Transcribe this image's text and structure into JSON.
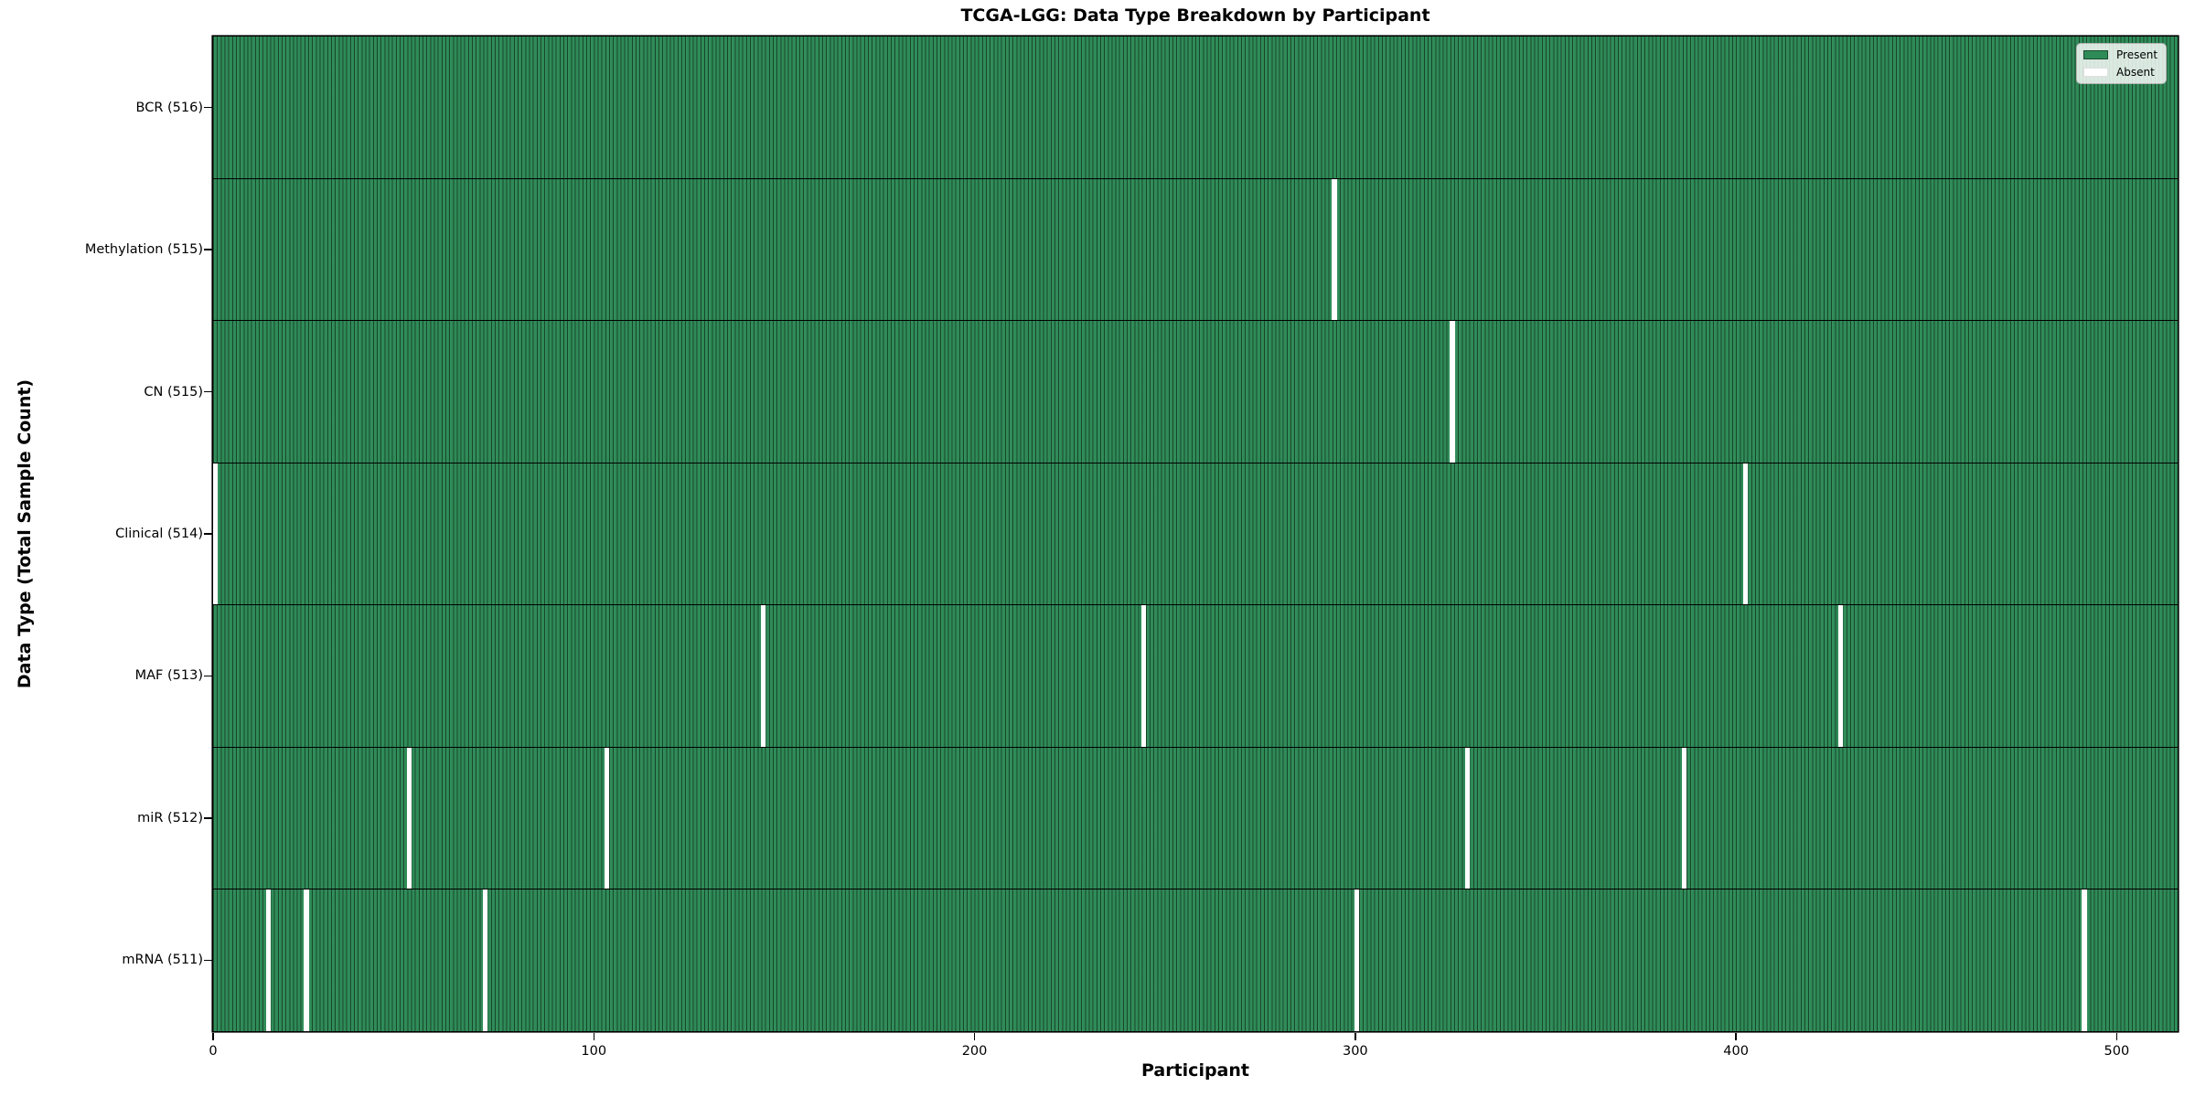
{
  "chart_data": {
    "type": "heatmap",
    "title": "TCGA-LGG: Data Type Breakdown by Participant",
    "xlabel": "Participant",
    "ylabel": "Data Type (Total Sample Count)",
    "xlim": [
      0,
      516
    ],
    "x_ticks": [
      0,
      100,
      200,
      300,
      400,
      500
    ],
    "total_participants": 516,
    "grid": false,
    "legend_position": "upper right",
    "legend": [
      {
        "label": "Present",
        "color": "#2e8b57"
      },
      {
        "label": "Absent",
        "color": "#ffffff"
      }
    ],
    "colors": {
      "present": "#2e8b57",
      "absent": "#ffffff",
      "cell_edge": "#000000"
    },
    "rows": [
      {
        "label": "BCR (516)",
        "data_type": "BCR",
        "count": 516,
        "absent_participants": []
      },
      {
        "label": "Methylation (515)",
        "data_type": "Methylation",
        "count": 515,
        "absent_participants": [
          294
        ]
      },
      {
        "label": "CN (515)",
        "data_type": "CN",
        "count": 515,
        "absent_participants": [
          325
        ]
      },
      {
        "label": "Clinical (514)",
        "data_type": "Clinical",
        "count": 514,
        "absent_participants": [
          0,
          402
        ]
      },
      {
        "label": "MAF (513)",
        "data_type": "MAF",
        "count": 513,
        "absent_participants": [
          144,
          244,
          427
        ]
      },
      {
        "label": "miR (512)",
        "data_type": "miR",
        "count": 512,
        "absent_participants": [
          51,
          103,
          329,
          386
        ]
      },
      {
        "label": "mRNA (511)",
        "data_type": "mRNA",
        "count": 511,
        "absent_participants": [
          14,
          24,
          71,
          300,
          491
        ]
      }
    ]
  }
}
